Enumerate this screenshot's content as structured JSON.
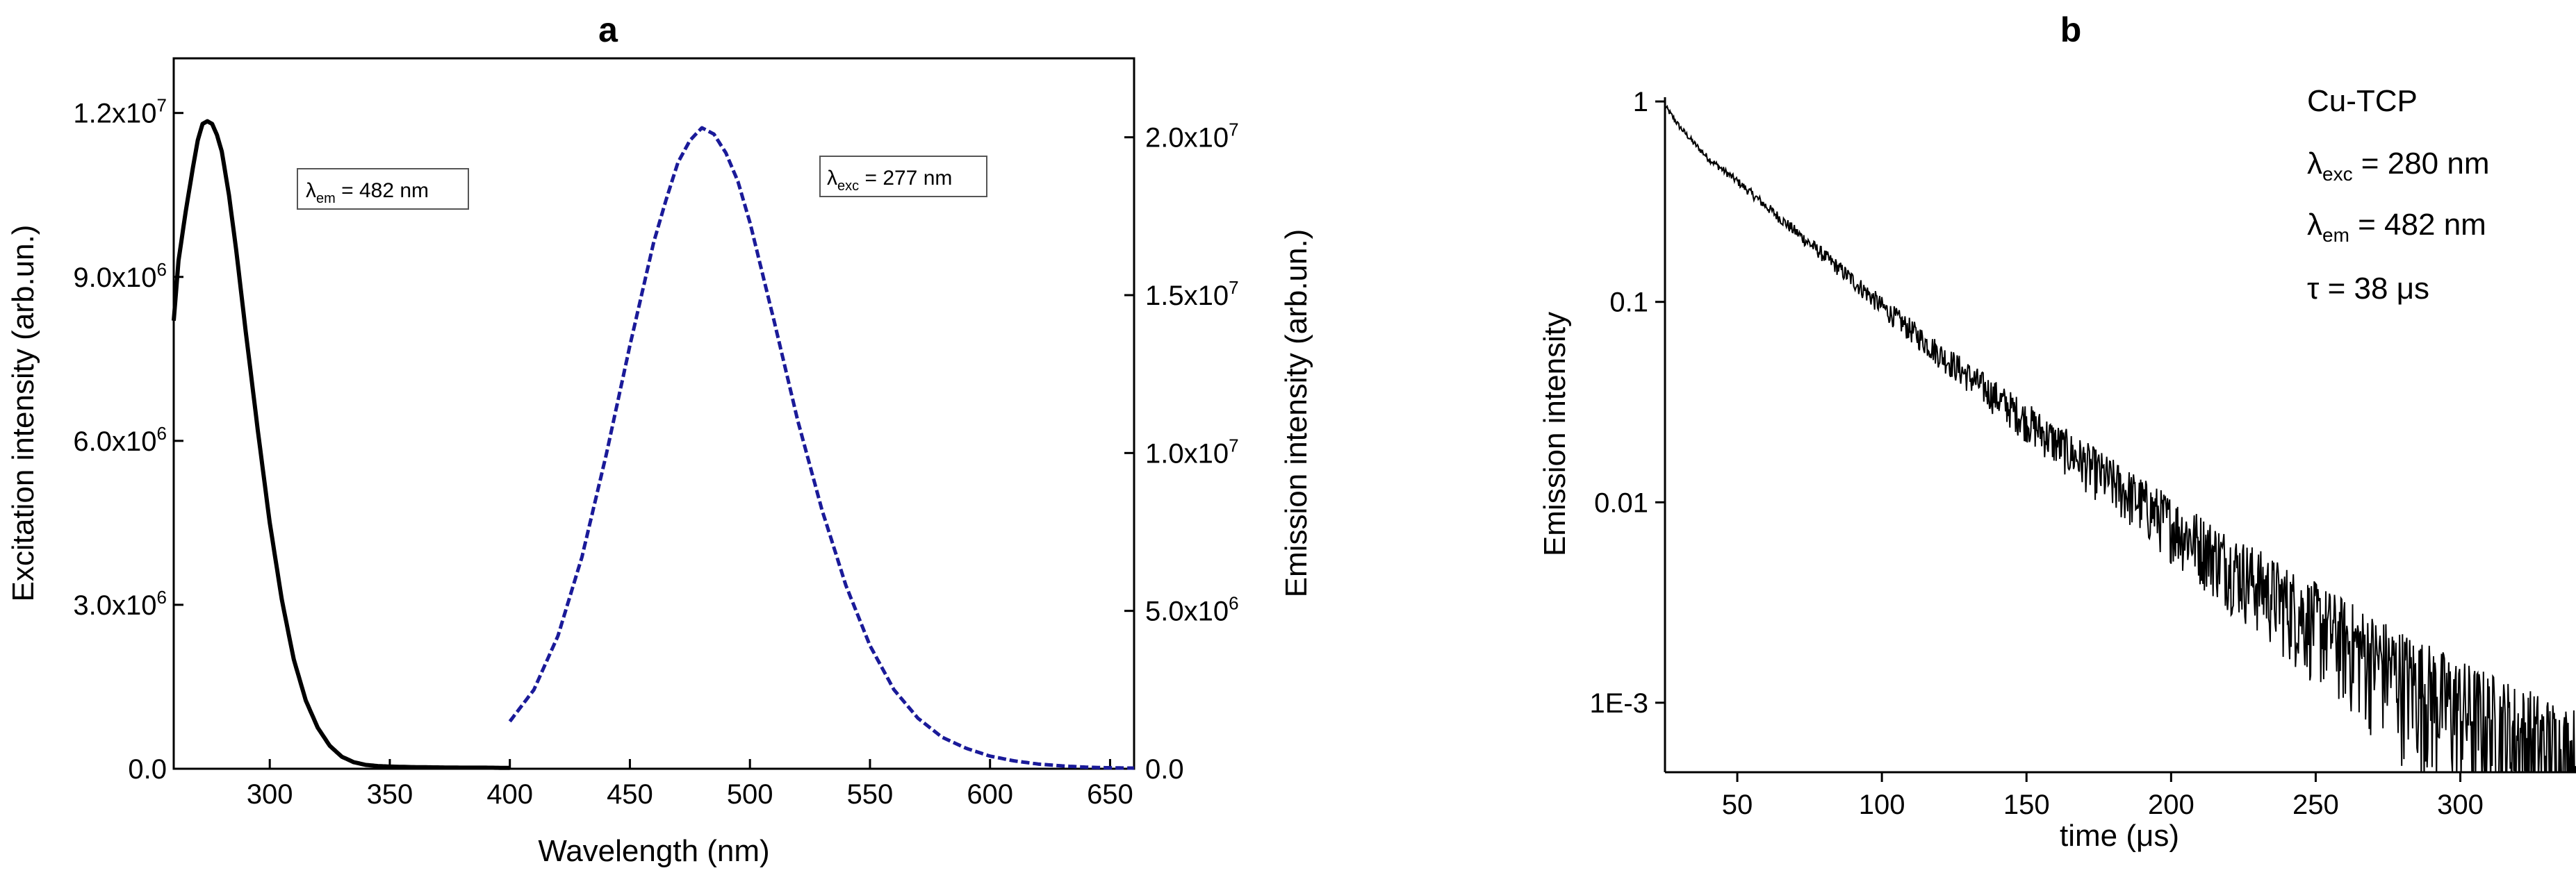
{
  "chart_data": [
    {
      "panel": "a",
      "type": "line",
      "xlabel": "Wavelength (nm)",
      "ylabel": "Excitation intensity (arb.un.)",
      "ylabel_right": "Emission intensity (arb.un.)",
      "xlim": [
        260,
        660
      ],
      "ylim": [
        0,
        13000000
      ],
      "ylim_right": [
        0,
        22500000
      ],
      "x_ticks": [
        {
          "value": 300,
          "label": "300"
        },
        {
          "value": 350,
          "label": "350"
        },
        {
          "value": 400,
          "label": "400"
        },
        {
          "value": 450,
          "label": "450"
        },
        {
          "value": 500,
          "label": "500"
        },
        {
          "value": 550,
          "label": "550"
        },
        {
          "value": 600,
          "label": "600"
        },
        {
          "value": 650,
          "label": "650"
        }
      ],
      "y_ticks": [
        {
          "value": 0,
          "base": "0.0",
          "exp": ""
        },
        {
          "value": 3000000,
          "base": "3.0x10",
          "exp": "6"
        },
        {
          "value": 6000000,
          "base": "6.0x10",
          "exp": "6"
        },
        {
          "value": 9000000,
          "base": "9.0x10",
          "exp": "6"
        },
        {
          "value": 12000000,
          "base": "1.2x10",
          "exp": "7"
        }
      ],
      "y_ticks_right": [
        {
          "value": 0,
          "base": "0.0",
          "exp": ""
        },
        {
          "value": 5000000,
          "base": "5.0x10",
          "exp": "6"
        },
        {
          "value": 10000000,
          "base": "1.0x10",
          "exp": "7"
        },
        {
          "value": 15000000,
          "base": "1.5x10",
          "exp": "7"
        },
        {
          "value": 20000000,
          "base": "2.0x10",
          "exp": "7"
        }
      ],
      "series": [
        {
          "axis": "left",
          "style": "solid",
          "color": "#000000",
          "x": [
            260,
            262,
            265,
            268,
            270,
            272,
            274,
            276,
            278,
            280,
            283,
            286,
            290,
            295,
            300,
            305,
            310,
            315,
            320,
            325,
            330,
            335,
            340,
            345,
            350,
            360,
            370,
            380,
            390,
            400
          ],
          "y": [
            8200000,
            9300000,
            10200000,
            11000000,
            11500000,
            11800000,
            11850000,
            11800000,
            11600000,
            11300000,
            10500000,
            9500000,
            8000000,
            6200000,
            4500000,
            3100000,
            2000000,
            1250000,
            750000,
            420000,
            220000,
            120000,
            70000,
            50000,
            40000,
            30000,
            25000,
            20000,
            20000,
            15000
          ]
        },
        {
          "axis": "right",
          "style": "dashed",
          "color": "#1a1a99",
          "x": [
            400,
            410,
            420,
            430,
            440,
            450,
            460,
            465,
            470,
            475,
            480,
            485,
            490,
            495,
            500,
            510,
            520,
            530,
            540,
            550,
            560,
            570,
            580,
            590,
            600,
            610,
            620,
            630,
            640,
            650,
            660
          ],
          "y": [
            1500000,
            2500000,
            4200000,
            6700000,
            9900000,
            13400000,
            16700000,
            18000000,
            19200000,
            19900000,
            20300000,
            20100000,
            19500000,
            18600000,
            17300000,
            14200000,
            11000000,
            8200000,
            5800000,
            3900000,
            2500000,
            1600000,
            1000000,
            650000,
            400000,
            250000,
            150000,
            90000,
            50000,
            30000,
            20000
          ]
        }
      ],
      "annotations": [
        {
          "sym": "λ",
          "sub": "em",
          "text": " = 482 nm"
        },
        {
          "sym": "λ",
          "sub": "exc",
          "text": " = 277 nm"
        }
      ]
    },
    {
      "panel": "b",
      "type": "line",
      "scale_y": "log",
      "xlabel": "time (μs)",
      "ylabel": "Emission intensity",
      "xlim": [
        25,
        340
      ],
      "ylim": [
        0.00045,
        1.05
      ],
      "x_ticks": [
        {
          "value": 50,
          "label": "50"
        },
        {
          "value": 100,
          "label": "100"
        },
        {
          "value": 150,
          "label": "150"
        },
        {
          "value": 200,
          "label": "200"
        },
        {
          "value": 250,
          "label": "250"
        },
        {
          "value": 300,
          "label": "300"
        }
      ],
      "y_ticks": [
        {
          "value": 1,
          "label": "1"
        },
        {
          "value": 0.1,
          "label": "0.1"
        },
        {
          "value": 0.01,
          "label": "0.01"
        },
        {
          "value": 0.001,
          "label": "1E-3"
        }
      ],
      "series": [
        {
          "style": "noisy",
          "color": "#000000",
          "x": [
            25,
            30,
            35,
            40,
            50,
            60,
            70,
            80,
            90,
            100,
            120,
            140,
            160,
            180,
            200,
            220,
            240,
            260,
            280,
            300,
            320,
            340
          ],
          "y": [
            0.95,
            0.75,
            0.62,
            0.52,
            0.4,
            0.3,
            0.225,
            0.17,
            0.128,
            0.095,
            0.055,
            0.033,
            0.02,
            0.0125,
            0.0079,
            0.005,
            0.0032,
            0.0021,
            0.0014,
            0.00095,
            0.00068,
            0.0005
          ]
        }
      ],
      "legend": {
        "title": "Cu-TCP",
        "items": [
          {
            "sym": "λ",
            "sub": "exc",
            "text": " = 280 nm"
          },
          {
            "sym": "λ",
            "sub": "em",
            "text": " = 482 nm"
          },
          {
            "sym": "τ",
            "sub": "",
            "text": " = 38 μs"
          }
        ]
      }
    }
  ]
}
